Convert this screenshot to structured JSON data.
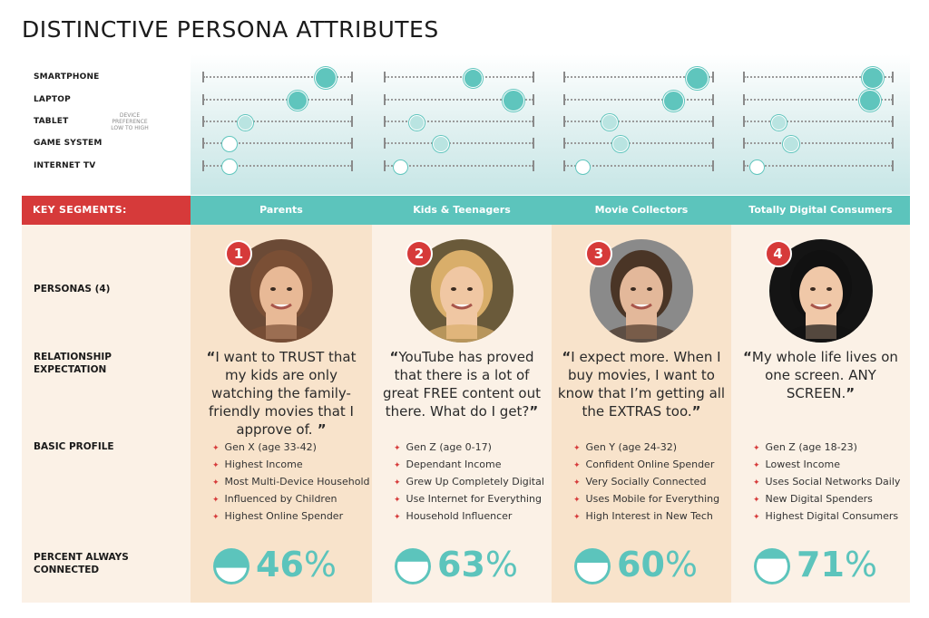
{
  "title": "DISTINCTIVE PERSONA ATTRIBUTES",
  "device_section": {
    "rows": [
      "SMARTPHONE",
      "LAPTOP",
      "TABLET",
      "GAME SYSTEM",
      "INTERNET TV"
    ],
    "scale_note": "DEVICE PREFERENCE LOW TO HIGH"
  },
  "key_segments_label": "KEY SEGMENTS:",
  "row_labels": {
    "personas": "PERSONAS (4)",
    "relationship": "RELATIONSHIP EXPECTATION",
    "profile": "BASIC PROFILE",
    "connected": "PERCENT ALWAYS CONNECTED"
  },
  "colors": {
    "accent_red": "#d63a3a",
    "teal": "#5cc4bc",
    "cream": "#fbf1e6",
    "peach": "#f8e3cb"
  },
  "segments": [
    {
      "name": "Parents",
      "number": "1",
      "quote_open": "“",
      "quote": "I want to TRUST that my kids are only watching the family-friendly movies that I approve of.",
      "quote_close": " ”",
      "profile": [
        "Gen X (age 33-42)",
        "Highest Income",
        "Most Multi-Device Household",
        "Influenced by Children",
        "Highest Online Spender"
      ],
      "percent": "46",
      "percent_value": 0.46,
      "device_pref": [
        0.82,
        0.63,
        0.28,
        0.17,
        0.17
      ]
    },
    {
      "name": "Kids & Teenagers",
      "number": "2",
      "quote_open": "“",
      "quote": "YouTube has proved that there is a lot of great FREE content out there. What do I get?",
      "quote_close": "”",
      "profile": [
        "Gen Z (age 0-17)",
        "Dependant Income",
        "Grew Up Completely Digital",
        "Use Internet for Everything",
        "Household Influencer"
      ],
      "percent": "63",
      "percent_value": 0.63,
      "device_pref": [
        0.59,
        0.86,
        0.21,
        0.37,
        0.1
      ]
    },
    {
      "name": "Movie Collectors",
      "number": "3",
      "quote_open": "“",
      "quote": "I expect more. When I buy movies, I want to know that I’m getting all the EXTRAS too.",
      "quote_close": "”",
      "profile": [
        "Gen Y (age 24-32)",
        "Confident Online Spender",
        "Very Socially Connected",
        "Uses Mobile for Everything",
        "High Interest in New Tech"
      ],
      "percent": "60",
      "percent_value": 0.6,
      "device_pref": [
        0.89,
        0.73,
        0.3,
        0.37,
        0.12
      ]
    },
    {
      "name": "Totally Digital Consumers",
      "number": "4",
      "quote_open": "“",
      "quote": "My whole life lives on one screen. ANY SCREEN.",
      "quote_close": "”",
      "profile": [
        "Gen Z (age 18-23)",
        "Lowest Income",
        "Uses Social Networks Daily",
        "New Digital Spenders",
        "Highest Digital Consumers"
      ],
      "percent": "71",
      "percent_value": 0.71,
      "device_pref": [
        0.86,
        0.84,
        0.23,
        0.31,
        0.08
      ]
    }
  ]
}
